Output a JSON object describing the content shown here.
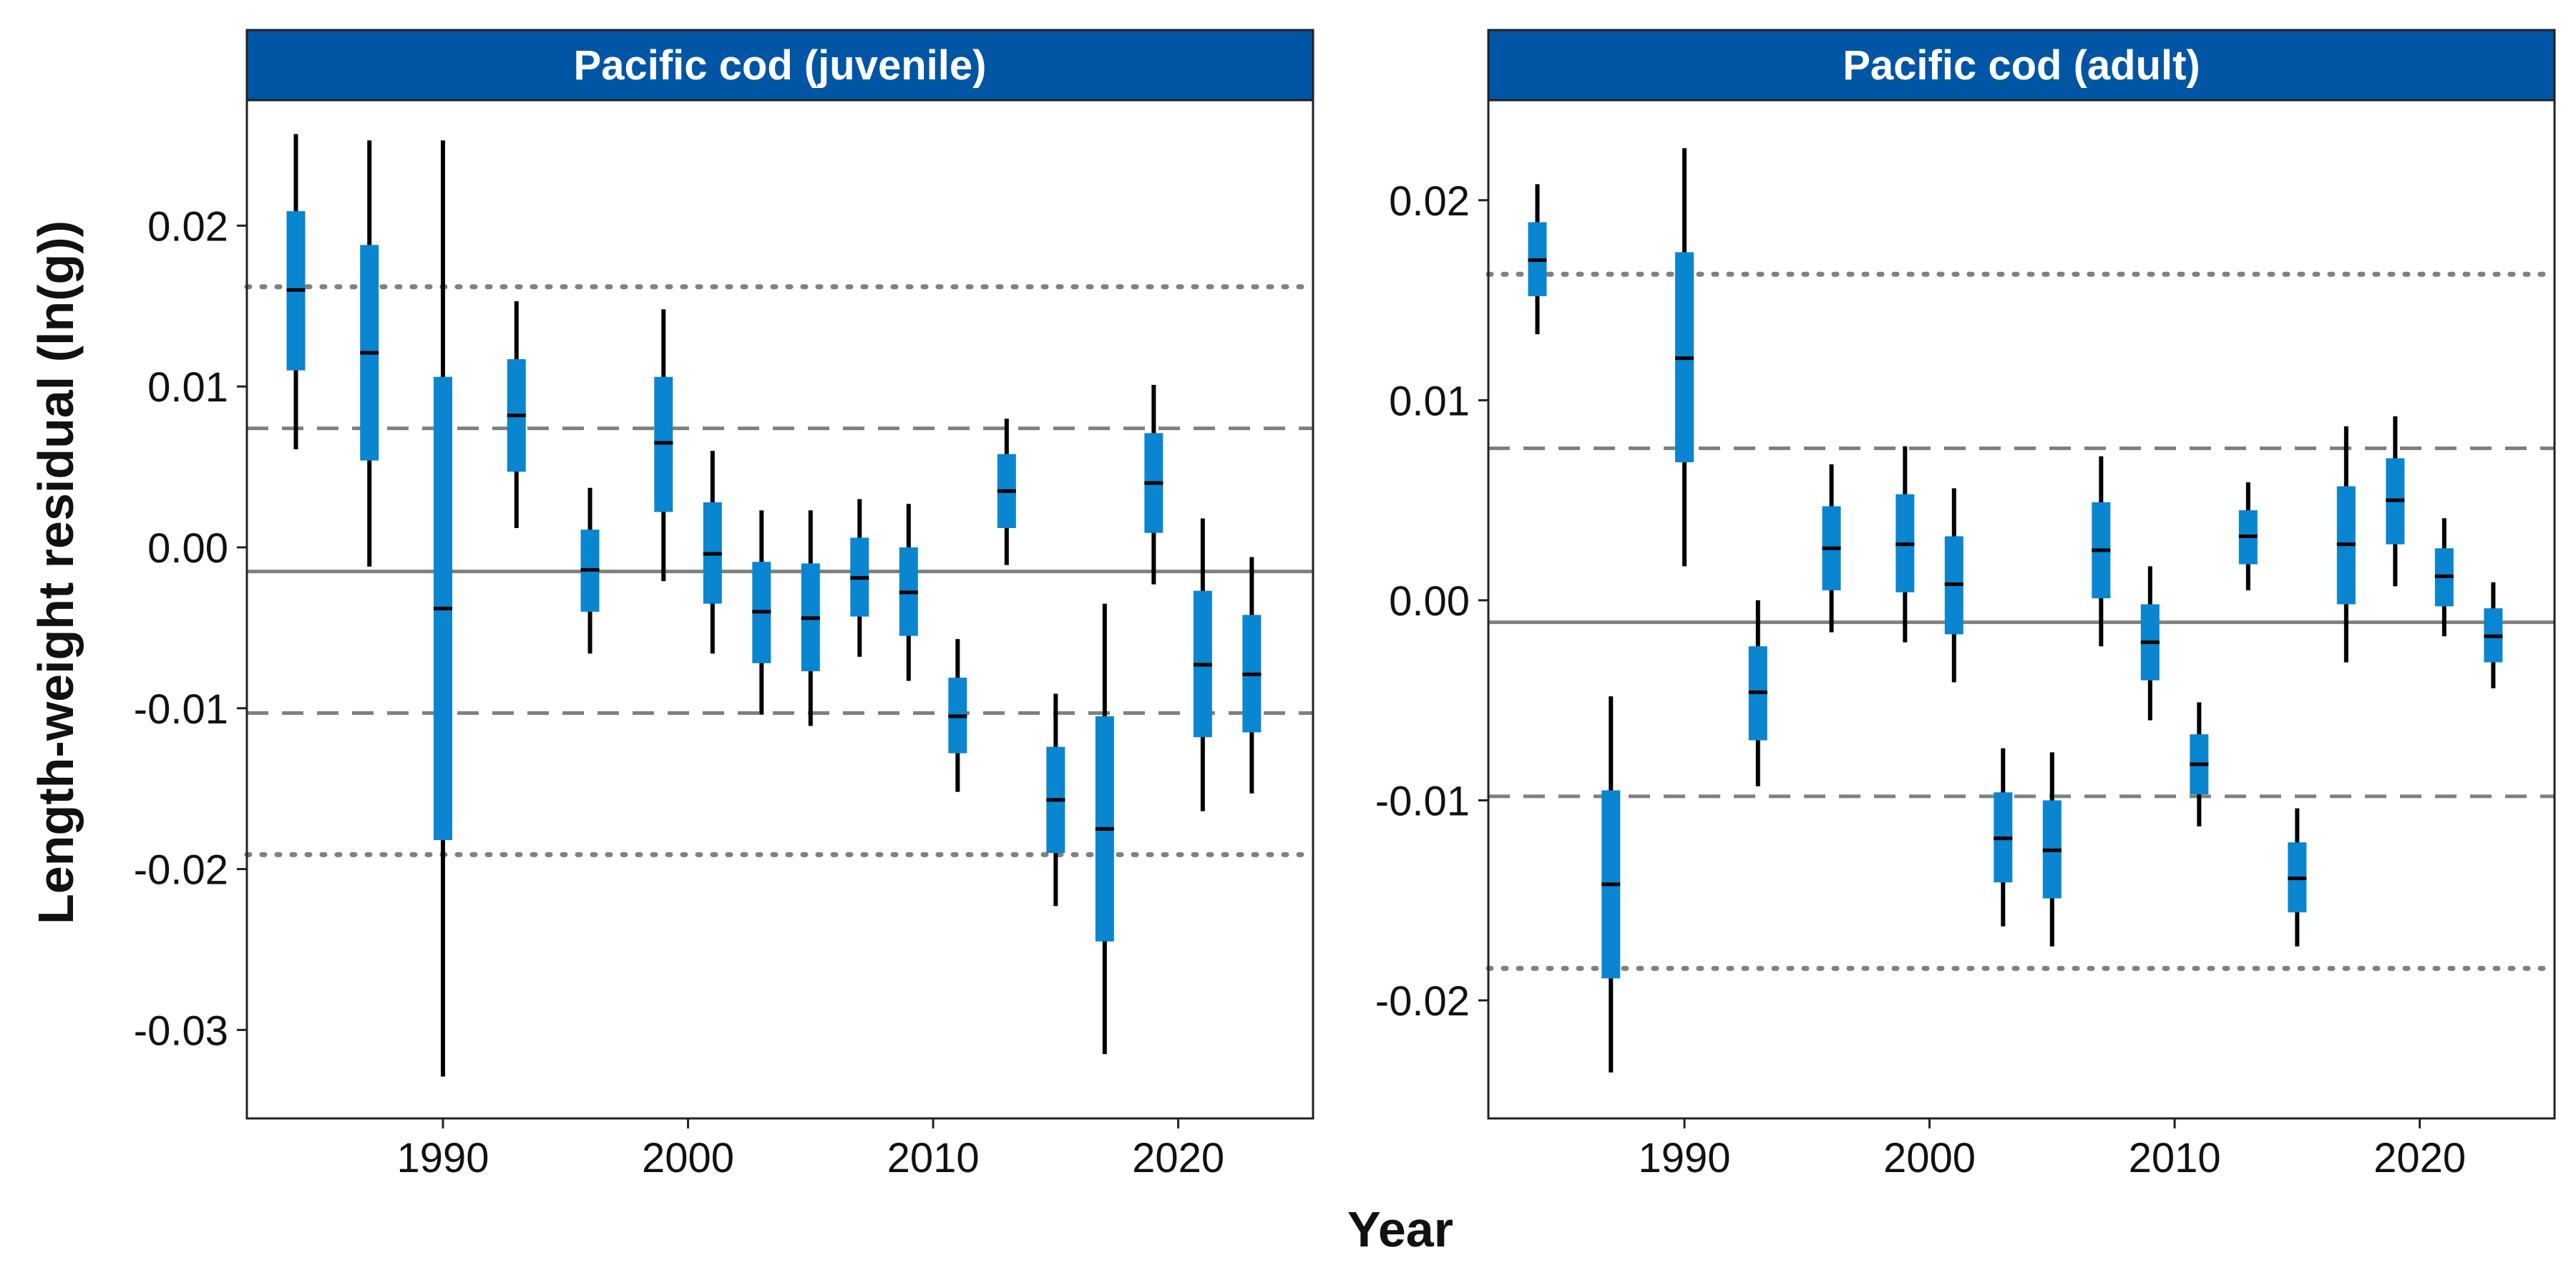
{
  "colors": {
    "strip_fill": "#0055a5",
    "box_fill": "#0a85d0",
    "whisker": "#000000",
    "median": "#000000",
    "ref_line": "#808080",
    "panel_border": "#222222"
  },
  "axes": {
    "xlabel": "Year",
    "ylabel": "Length-weight residual (ln(g))"
  },
  "chart_data": [
    {
      "type": "boxplot",
      "title": "Pacific cod (juvenile)",
      "xlim": [
        1982,
        2025.5
      ],
      "ylim": [
        -0.0355,
        0.0278
      ],
      "xticks": [
        1990,
        2000,
        2010,
        2020
      ],
      "xtick_labels": [
        "1990",
        "2000",
        "2010",
        "2020"
      ],
      "yticks": [
        -0.03,
        -0.02,
        -0.01,
        0.0,
        0.01,
        0.02
      ],
      "ytick_labels": [
        "-0.03",
        "-0.02",
        "-0.01",
        "0.00",
        "0.01",
        "0.02"
      ],
      "ref_lines": {
        "mean": -0.0015,
        "upper_dashed": 0.0074,
        "lower_dashed": -0.0103,
        "upper_dotted": 0.0162,
        "lower_dotted": -0.0191
      },
      "points": [
        {
          "x": 1984,
          "low": 0.0061,
          "q1": 0.011,
          "median": 0.016,
          "q3": 0.0209,
          "high": 0.0257
        },
        {
          "x": 1987,
          "low": -0.0012,
          "q1": 0.0054,
          "median": 0.0121,
          "q3": 0.0188,
          "high": 0.0253
        },
        {
          "x": 1990,
          "low": -0.0329,
          "q1": -0.0182,
          "median": -0.0038,
          "q3": 0.0106,
          "high": 0.0253
        },
        {
          "x": 1993,
          "low": 0.0012,
          "q1": 0.0047,
          "median": 0.0082,
          "q3": 0.0117,
          "high": 0.0153
        },
        {
          "x": 1996,
          "low": -0.0066,
          "q1": -0.004,
          "median": -0.0014,
          "q3": 0.0011,
          "high": 0.0037
        },
        {
          "x": 1999,
          "low": -0.0021,
          "q1": 0.0022,
          "median": 0.0065,
          "q3": 0.0106,
          "high": 0.0148
        },
        {
          "x": 2001,
          "low": -0.0066,
          "q1": -0.0035,
          "median": -0.0004,
          "q3": 0.0028,
          "high": 0.006
        },
        {
          "x": 2003,
          "low": -0.0104,
          "q1": -0.0072,
          "median": -0.004,
          "q3": -0.0009,
          "high": 0.0023
        },
        {
          "x": 2005,
          "low": -0.0111,
          "q1": -0.0077,
          "median": -0.0044,
          "q3": -0.001,
          "high": 0.0023
        },
        {
          "x": 2007,
          "low": -0.0068,
          "q1": -0.0043,
          "median": -0.0019,
          "q3": 0.0006,
          "high": 0.003
        },
        {
          "x": 2009,
          "low": -0.0083,
          "q1": -0.0055,
          "median": -0.0028,
          "q3": 0.0,
          "high": 0.0027
        },
        {
          "x": 2011,
          "low": -0.0152,
          "q1": -0.0128,
          "median": -0.0105,
          "q3": -0.0081,
          "high": -0.0057
        },
        {
          "x": 2013,
          "low": -0.0011,
          "q1": 0.0012,
          "median": 0.0035,
          "q3": 0.0058,
          "high": 0.008
        },
        {
          "x": 2015,
          "low": -0.0223,
          "q1": -0.019,
          "median": -0.0157,
          "q3": -0.0124,
          "high": -0.0091
        },
        {
          "x": 2017,
          "low": -0.0315,
          "q1": -0.0245,
          "median": -0.0175,
          "q3": -0.0105,
          "high": -0.0035
        },
        {
          "x": 2019,
          "low": -0.0023,
          "q1": 0.0009,
          "median": 0.004,
          "q3": 0.0071,
          "high": 0.0101
        },
        {
          "x": 2021,
          "low": -0.0164,
          "q1": -0.0118,
          "median": -0.0073,
          "q3": -0.0027,
          "high": 0.0018
        },
        {
          "x": 2023,
          "low": -0.0153,
          "q1": -0.0115,
          "median": -0.0079,
          "q3": -0.0042,
          "high": -0.0006
        }
      ]
    },
    {
      "type": "boxplot",
      "title": "Pacific cod (adult)",
      "xlim": [
        1982,
        2025.5
      ],
      "ylim": [
        -0.0259,
        0.025
      ],
      "xticks": [
        1990,
        2000,
        2010,
        2020
      ],
      "xtick_labels": [
        "1990",
        "2000",
        "2010",
        "2020"
      ],
      "yticks": [
        -0.02,
        -0.01,
        0.0,
        0.01,
        0.02
      ],
      "ytick_labels": [
        "-0.02",
        "-0.01",
        "0.00",
        "0.01",
        "0.02"
      ],
      "ref_lines": {
        "mean": -0.0011,
        "upper_dashed": 0.0076,
        "lower_dashed": -0.0098,
        "upper_dotted": 0.0163,
        "lower_dotted": -0.0184
      },
      "points": [
        {
          "x": 1984,
          "low": 0.0133,
          "q1": 0.0152,
          "median": 0.017,
          "q3": 0.0189,
          "high": 0.0208
        },
        {
          "x": 1987,
          "low": -0.0236,
          "q1": -0.0189,
          "median": -0.0142,
          "q3": -0.0095,
          "high": -0.0048
        },
        {
          "x": 1990,
          "low": 0.0017,
          "q1": 0.0069,
          "median": 0.0121,
          "q3": 0.0174,
          "high": 0.0226
        },
        {
          "x": 1993,
          "low": -0.0093,
          "q1": -0.007,
          "median": -0.0046,
          "q3": -0.0023,
          "high": 0.0
        },
        {
          "x": 1996,
          "low": -0.0016,
          "q1": 0.0005,
          "median": 0.0026,
          "q3": 0.0047,
          "high": 0.0068
        },
        {
          "x": 1999,
          "low": -0.0021,
          "q1": 0.0004,
          "median": 0.0028,
          "q3": 0.0053,
          "high": 0.0077
        },
        {
          "x": 2001,
          "low": -0.0041,
          "q1": -0.0017,
          "median": 0.0008,
          "q3": 0.0032,
          "high": 0.0056
        },
        {
          "x": 2003,
          "low": -0.0163,
          "q1": -0.0141,
          "median": -0.0119,
          "q3": -0.0096,
          "high": -0.0074
        },
        {
          "x": 2005,
          "low": -0.0173,
          "q1": -0.0149,
          "median": -0.0125,
          "q3": -0.01,
          "high": -0.0076
        },
        {
          "x": 2007,
          "low": -0.0023,
          "q1": 0.0001,
          "median": 0.0025,
          "q3": 0.0049,
          "high": 0.0072
        },
        {
          "x": 2009,
          "low": -0.006,
          "q1": -0.004,
          "median": -0.0021,
          "q3": -0.0002,
          "high": 0.0017
        },
        {
          "x": 2011,
          "low": -0.0113,
          "q1": -0.0097,
          "median": -0.0082,
          "q3": -0.0067,
          "high": -0.0051
        },
        {
          "x": 2013,
          "low": 0.0005,
          "q1": 0.0018,
          "median": 0.0032,
          "q3": 0.0045,
          "high": 0.0059
        },
        {
          "x": 2015,
          "low": -0.0173,
          "q1": -0.0156,
          "median": -0.0139,
          "q3": -0.0121,
          "high": -0.0104
        },
        {
          "x": 2017,
          "low": -0.0031,
          "q1": -0.0002,
          "median": 0.0028,
          "q3": 0.0057,
          "high": 0.0087
        },
        {
          "x": 2019,
          "low": 0.0007,
          "q1": 0.0028,
          "median": 0.005,
          "q3": 0.0071,
          "high": 0.0092
        },
        {
          "x": 2021,
          "low": -0.0018,
          "q1": -0.0003,
          "median": 0.0012,
          "q3": 0.0026,
          "high": 0.0041
        },
        {
          "x": 2023,
          "low": -0.0044,
          "q1": -0.0031,
          "median": -0.0018,
          "q3": -0.0004,
          "high": 0.0009
        }
      ]
    }
  ]
}
